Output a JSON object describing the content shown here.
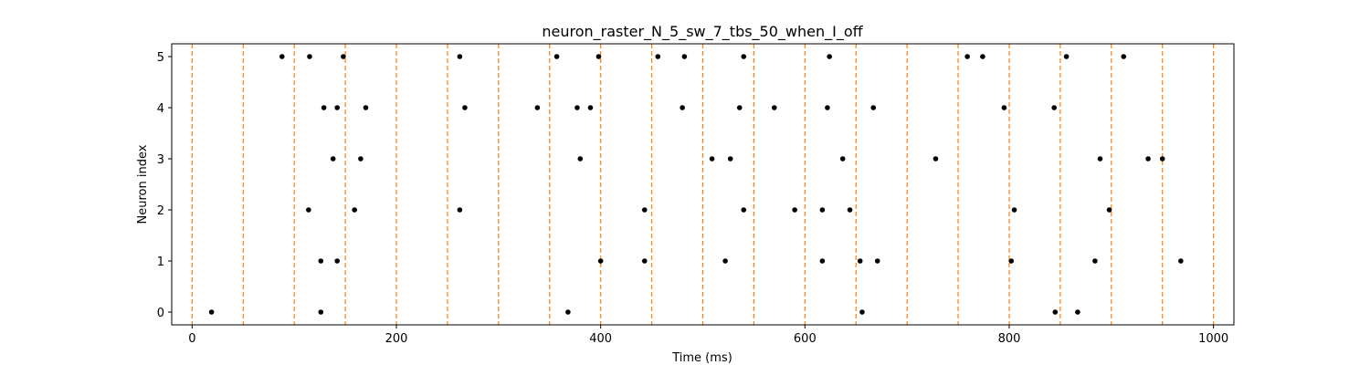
{
  "chart_data": {
    "type": "scatter",
    "title": "neuron_raster_N_5_sw_7_tbs_50_when_I_off",
    "xlabel": "Time (ms)",
    "ylabel": "Neuron index",
    "xlim": [
      -20,
      1020
    ],
    "ylim": [
      -0.25,
      5.25
    ],
    "xticks": [
      0,
      200,
      400,
      600,
      800,
      1000
    ],
    "yticks": [
      0,
      1,
      2,
      3,
      4,
      5
    ],
    "grid": false,
    "marker_color": "#000000",
    "vline_color": "#ff7f0e",
    "vlines": [
      0,
      50,
      100,
      150,
      200,
      250,
      300,
      350,
      400,
      450,
      500,
      550,
      600,
      650,
      700,
      750,
      800,
      850,
      900,
      950,
      1000
    ],
    "series": [
      {
        "neuron": 0,
        "spikes": [
          19,
          126,
          368,
          656,
          845,
          867
        ]
      },
      {
        "neuron": 1,
        "spikes": [
          126,
          142,
          400,
          443,
          522,
          617,
          654,
          671,
          802,
          884,
          968
        ]
      },
      {
        "neuron": 2,
        "spikes": [
          114,
          159,
          262,
          443,
          540,
          590,
          617,
          644,
          805,
          898
        ]
      },
      {
        "neuron": 3,
        "spikes": [
          138,
          165,
          380,
          509,
          527,
          637,
          728,
          889,
          936,
          950
        ]
      },
      {
        "neuron": 4,
        "spikes": [
          129,
          142,
          170,
          267,
          338,
          377,
          390,
          480,
          536,
          570,
          622,
          667,
          795,
          844
        ]
      },
      {
        "neuron": 5,
        "spikes": [
          88,
          115,
          148,
          262,
          357,
          398,
          456,
          482,
          540,
          624,
          759,
          774,
          856,
          912
        ]
      }
    ]
  }
}
